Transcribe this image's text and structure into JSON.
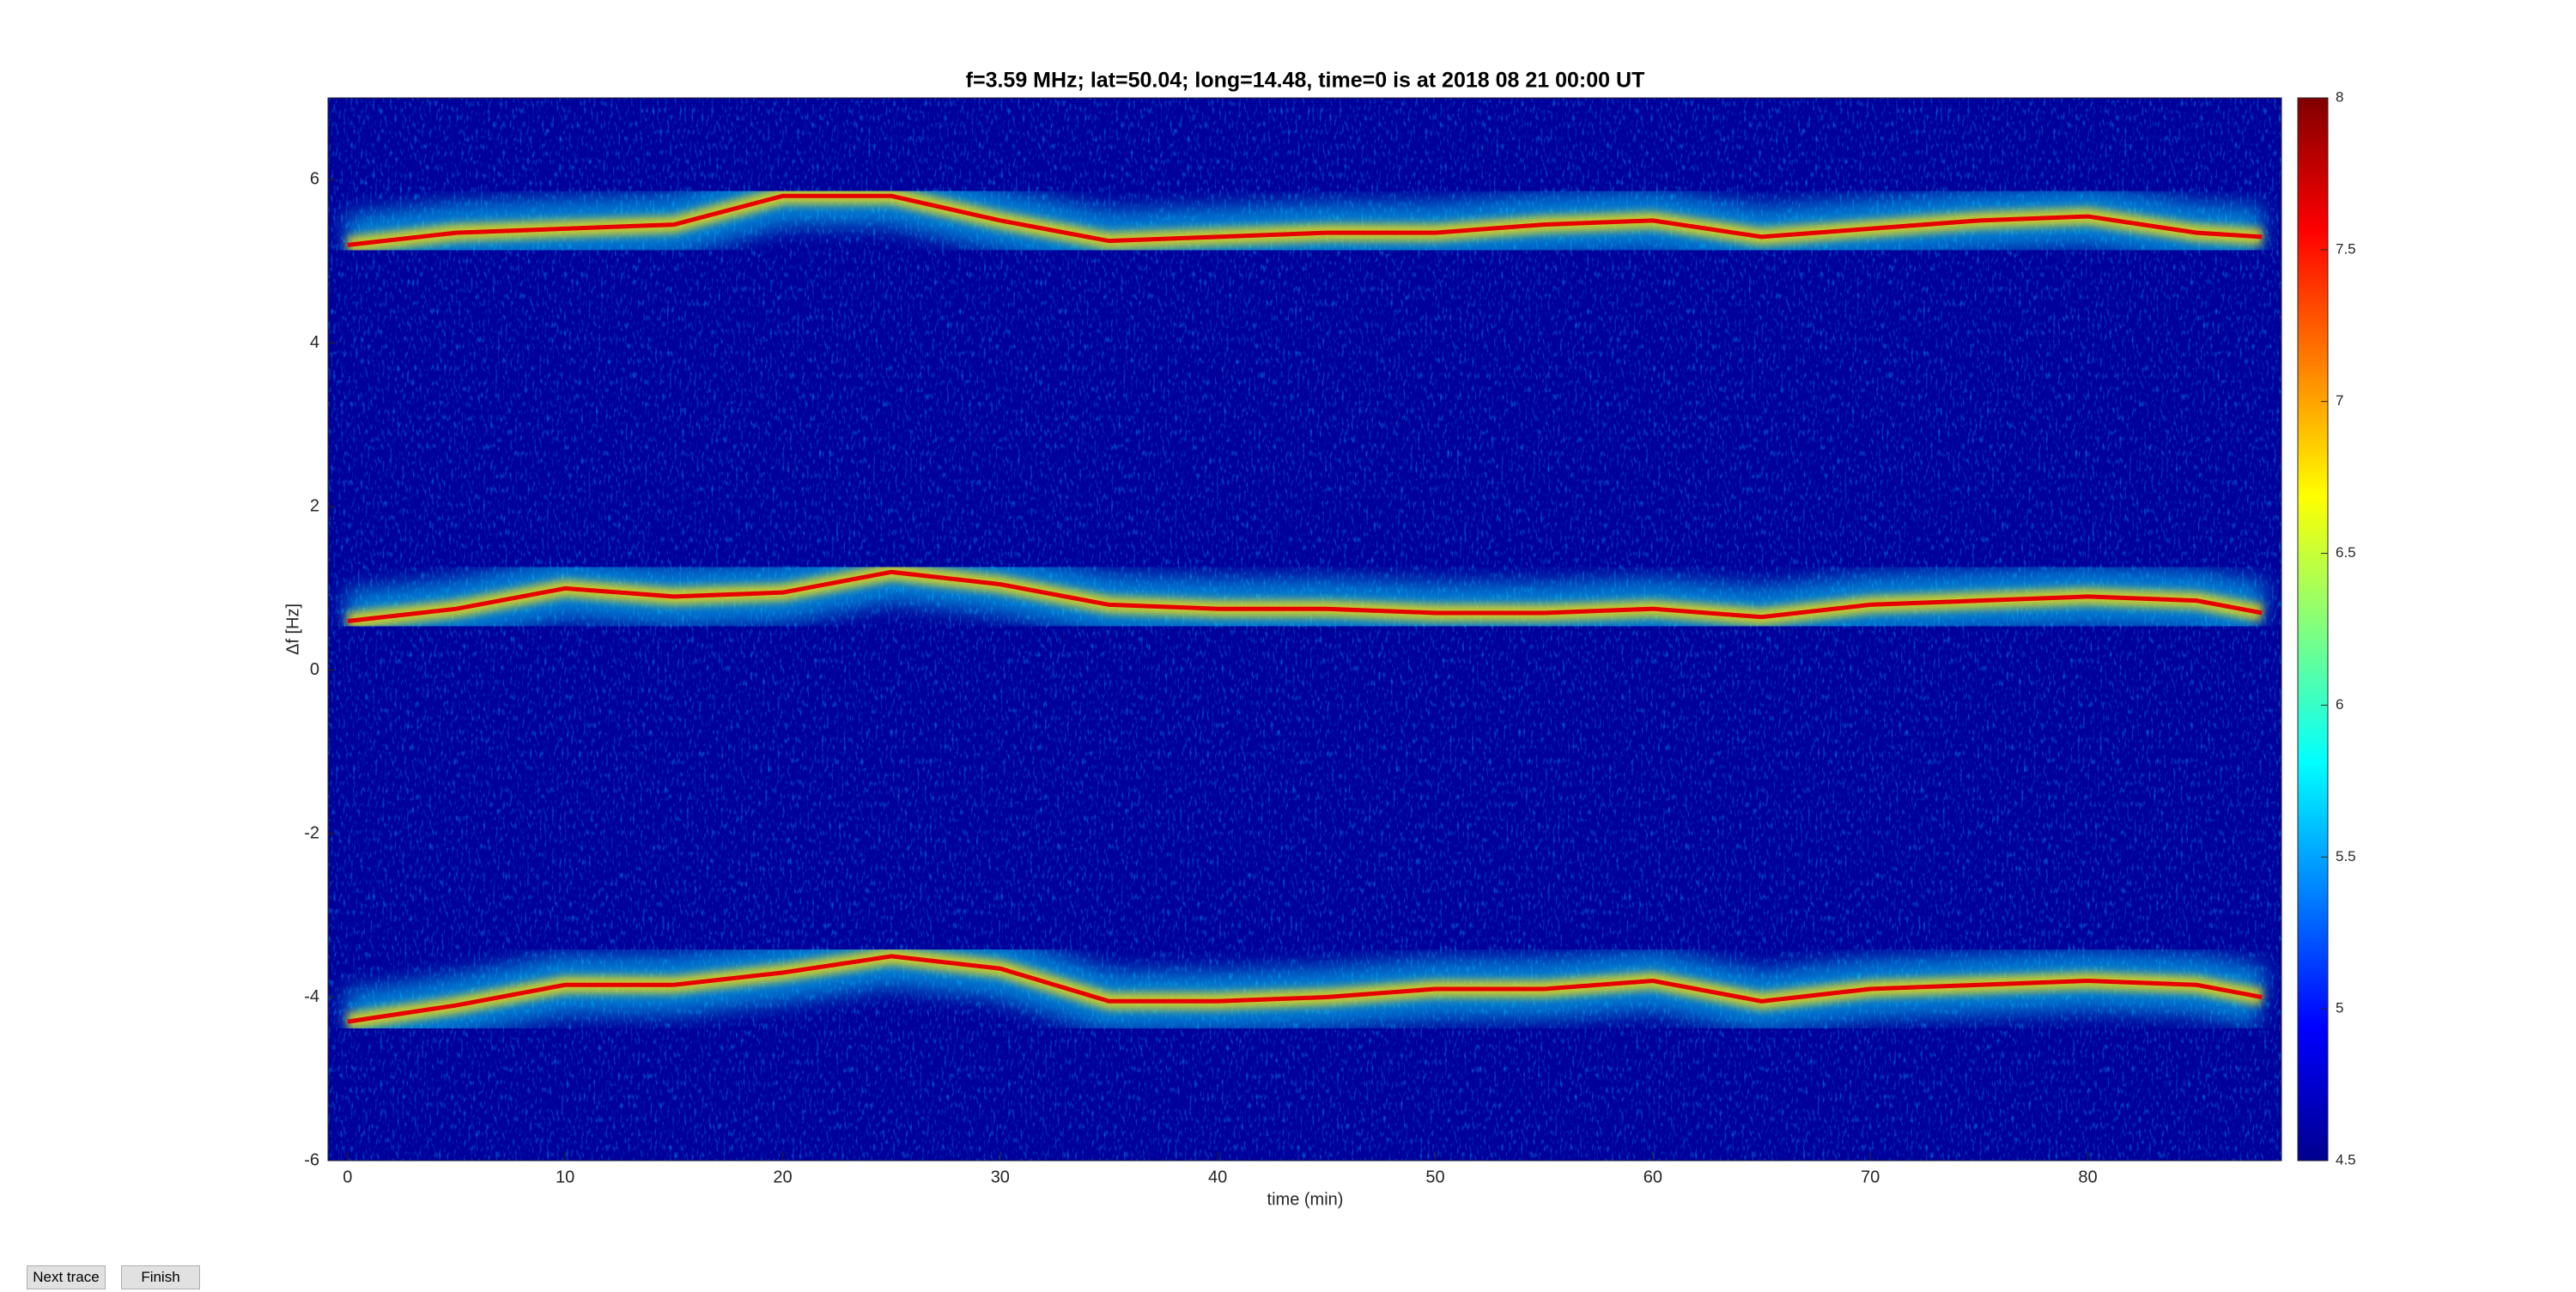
{
  "chart_data": {
    "type": "spectrogram",
    "title": "f=3.59 MHz;  lat=50.04; long=14.48, time=0 is at 2018 08 21 00:00 UT",
    "xlabel": "time (min)",
    "ylabel": "Δf [Hz]",
    "xlim": [
      -0.9,
      88.9
    ],
    "xticks": [
      0,
      10,
      20,
      30,
      40,
      50,
      60,
      70,
      80
    ],
    "ylim": [
      -6,
      7
    ],
    "yticks": [
      -6,
      -4,
      -2,
      0,
      2,
      4,
      6
    ],
    "colormap": "jet",
    "background": "#00009a",
    "clim": [
      4.5,
      8
    ],
    "cticks": [
      4.5,
      5,
      5.5,
      6,
      6.5,
      7,
      7.5,
      8
    ],
    "x": [
      0,
      5,
      10,
      15,
      20,
      25,
      30,
      35,
      40,
      45,
      50,
      55,
      60,
      65,
      70,
      75,
      80,
      85,
      88
    ],
    "series": [
      {
        "color": "#e60000",
        "values": [
          5.2,
          5.35,
          5.4,
          5.45,
          5.8,
          5.8,
          5.5,
          5.25,
          5.3,
          5.35,
          5.35,
          5.45,
          5.5,
          5.3,
          5.4,
          5.5,
          5.55,
          5.35,
          5.3
        ]
      },
      {
        "color": "#e60000",
        "values": [
          0.6,
          0.75,
          1.0,
          0.9,
          0.95,
          1.2,
          1.05,
          0.8,
          0.75,
          0.75,
          0.7,
          0.7,
          0.75,
          0.65,
          0.8,
          0.85,
          0.9,
          0.85,
          0.7
        ]
      },
      {
        "color": "#e60000",
        "values": [
          -4.3,
          -4.1,
          -3.85,
          -3.85,
          -3.7,
          -3.5,
          -3.65,
          -4.05,
          -4.05,
          -4.0,
          -3.9,
          -3.9,
          -3.8,
          -4.05,
          -3.9,
          -3.85,
          -3.8,
          -3.85,
          -4.0
        ]
      }
    ]
  },
  "controls": [
    "Next trace",
    "Finish"
  ]
}
